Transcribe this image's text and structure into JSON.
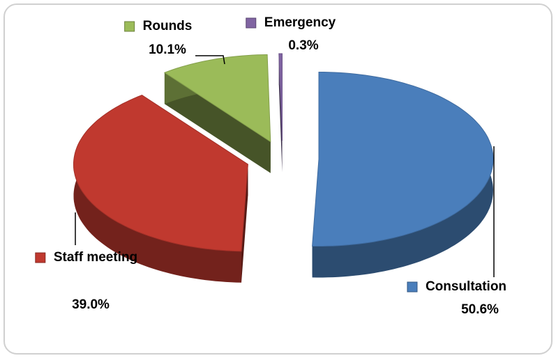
{
  "chart_data": {
    "type": "pie",
    "categories": [
      "Consultation",
      "Staff meeting",
      "Rounds",
      "Emergency"
    ],
    "values": [
      50.6,
      39.0,
      10.1,
      0.3
    ],
    "value_labels": [
      "50.6%",
      "39.0%",
      "10.1%",
      "0.3%"
    ],
    "colors": [
      "#4a7ebb",
      "#c0392f",
      "#9bbb59",
      "#8064a2"
    ]
  }
}
